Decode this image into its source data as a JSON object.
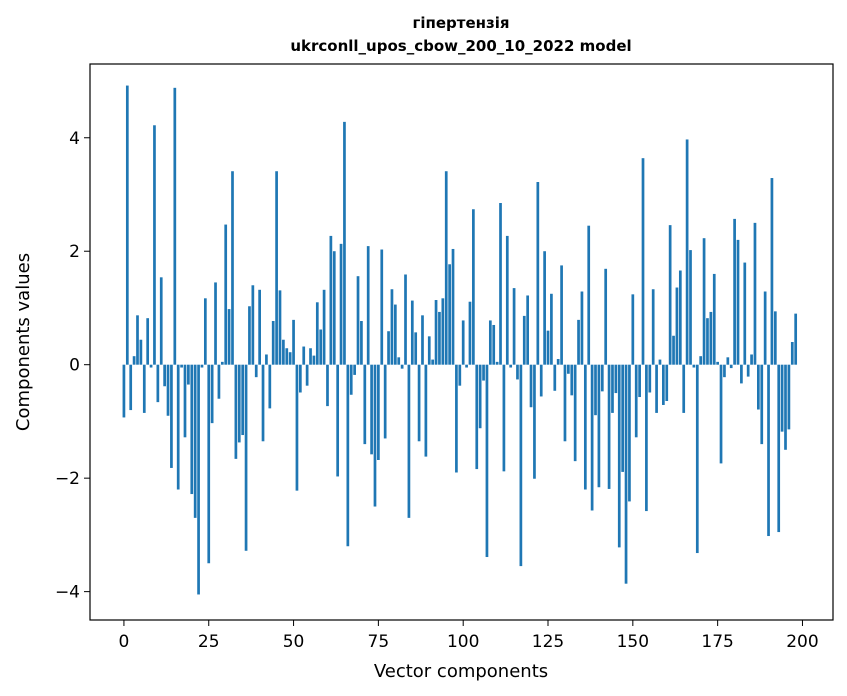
{
  "chart_data": {
    "type": "bar",
    "title_line1": "гіпертензія",
    "title_line2": "ukrconll_upos_cbow_200_10_2022 model",
    "xlabel": "Vector components",
    "ylabel": "Components values",
    "xlim": [
      -10,
      209
    ],
    "ylim": [
      -4.5,
      5.3
    ],
    "xticks": [
      0,
      25,
      50,
      75,
      100,
      125,
      150,
      175,
      200
    ],
    "yticks": [
      -4,
      -2,
      0,
      2,
      4
    ],
    "ytick_labels": [
      "−4",
      "−2",
      "0",
      "2",
      "4"
    ],
    "bar_color": "#1f77b4",
    "values": [
      -0.93,
      4.92,
      -0.8,
      0.15,
      0.87,
      0.44,
      -0.85,
      0.82,
      -0.05,
      4.22,
      -0.66,
      1.54,
      -0.38,
      -0.9,
      -1.82,
      4.88,
      -2.2,
      -0.05,
      -1.28,
      -0.35,
      -2.28,
      -2.7,
      -4.05,
      -0.05,
      1.17,
      -3.5,
      -1.03,
      1.45,
      -0.6,
      0.05,
      2.47,
      0.98,
      3.41,
      -1.66,
      -1.37,
      -1.24,
      -3.28,
      1.03,
      1.4,
      -0.22,
      1.32,
      -1.35,
      0.18,
      -0.77,
      0.77,
      3.41,
      1.31,
      0.44,
      0.29,
      0.22,
      0.79,
      -2.22,
      -0.49,
      0.32,
      -0.37,
      0.29,
      0.16,
      1.1,
      0.62,
      1.32,
      -0.73,
      2.27,
      2.0,
      -1.97,
      2.13,
      4.28,
      -3.2,
      -0.53,
      -0.18,
      1.56,
      0.77,
      -1.4,
      2.09,
      -1.58,
      -2.5,
      -1.68,
      2.03,
      -1.3,
      0.59,
      1.33,
      1.06,
      0.13,
      -0.07,
      1.59,
      -2.7,
      1.13,
      0.57,
      -1.35,
      0.87,
      -1.62,
      0.5,
      0.09,
      1.14,
      0.93,
      1.17,
      3.41,
      1.77,
      2.04,
      -1.9,
      -0.37,
      0.78,
      -0.05,
      1.11,
      2.74,
      -1.84,
      -1.12,
      -0.28,
      -3.39,
      0.78,
      0.7,
      0.05,
      2.85,
      -1.88,
      2.27,
      -0.05,
      1.35,
      -0.26,
      -3.55,
      0.86,
      1.22,
      -0.75,
      -2.01,
      3.22,
      -0.56,
      2.0,
      0.6,
      1.25,
      -0.46,
      0.1,
      1.75,
      -1.35,
      -0.16,
      -0.54,
      -1.7,
      0.79,
      1.29,
      -2.2,
      2.45,
      -2.57,
      -0.89,
      -2.16,
      -0.47,
      1.69,
      -2.19,
      -0.85,
      -0.5,
      -3.22,
      -1.89,
      -3.86,
      -2.41,
      1.24,
      -1.28,
      -0.57,
      3.64,
      -2.58,
      -0.49,
      1.33,
      -0.85,
      0.09,
      -0.71,
      -0.64,
      2.46,
      0.51,
      1.36,
      1.66,
      -0.85,
      3.97,
      2.02,
      -0.05,
      -3.32,
      0.15,
      2.23,
      0.82,
      0.93,
      1.6,
      0.05,
      -1.74,
      -0.22,
      0.13,
      -0.06,
      2.57,
      2.2,
      -0.33,
      1.8,
      -0.21,
      0.18,
      2.5,
      -0.79,
      -1.4,
      1.29,
      -3.02,
      3.29,
      0.94,
      -2.95,
      -1.18,
      -1.5,
      -1.14,
      0.4,
      0.9
    ]
  }
}
